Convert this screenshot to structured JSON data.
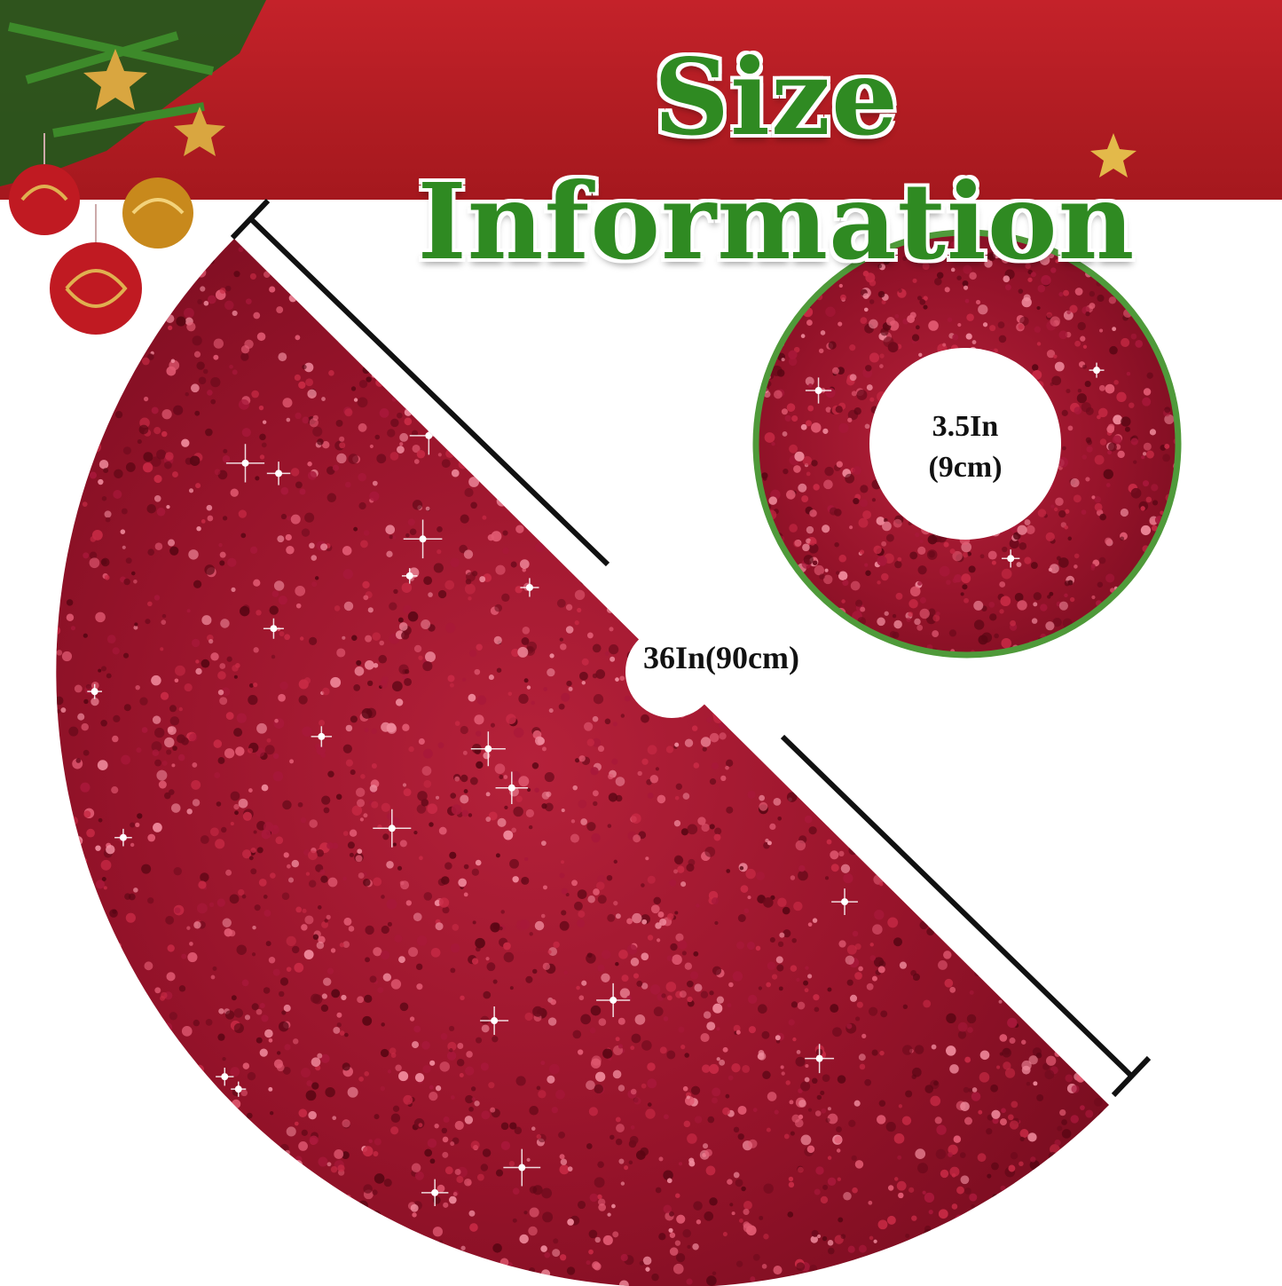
{
  "title": "Size Information",
  "skirt": {
    "diameter_label": "36In(90cm)",
    "color": "#9c1228"
  },
  "inset": {
    "hole_label_line1": "3.5In",
    "hole_label_line2": "(9cm)",
    "border_color": "#4f9a3a"
  },
  "banner_color": "#b51e24",
  "title_color": "#2f8a22",
  "decorations": [
    "pine-branch-icon",
    "ornament-ball-icon",
    "gold-star-icon"
  ]
}
